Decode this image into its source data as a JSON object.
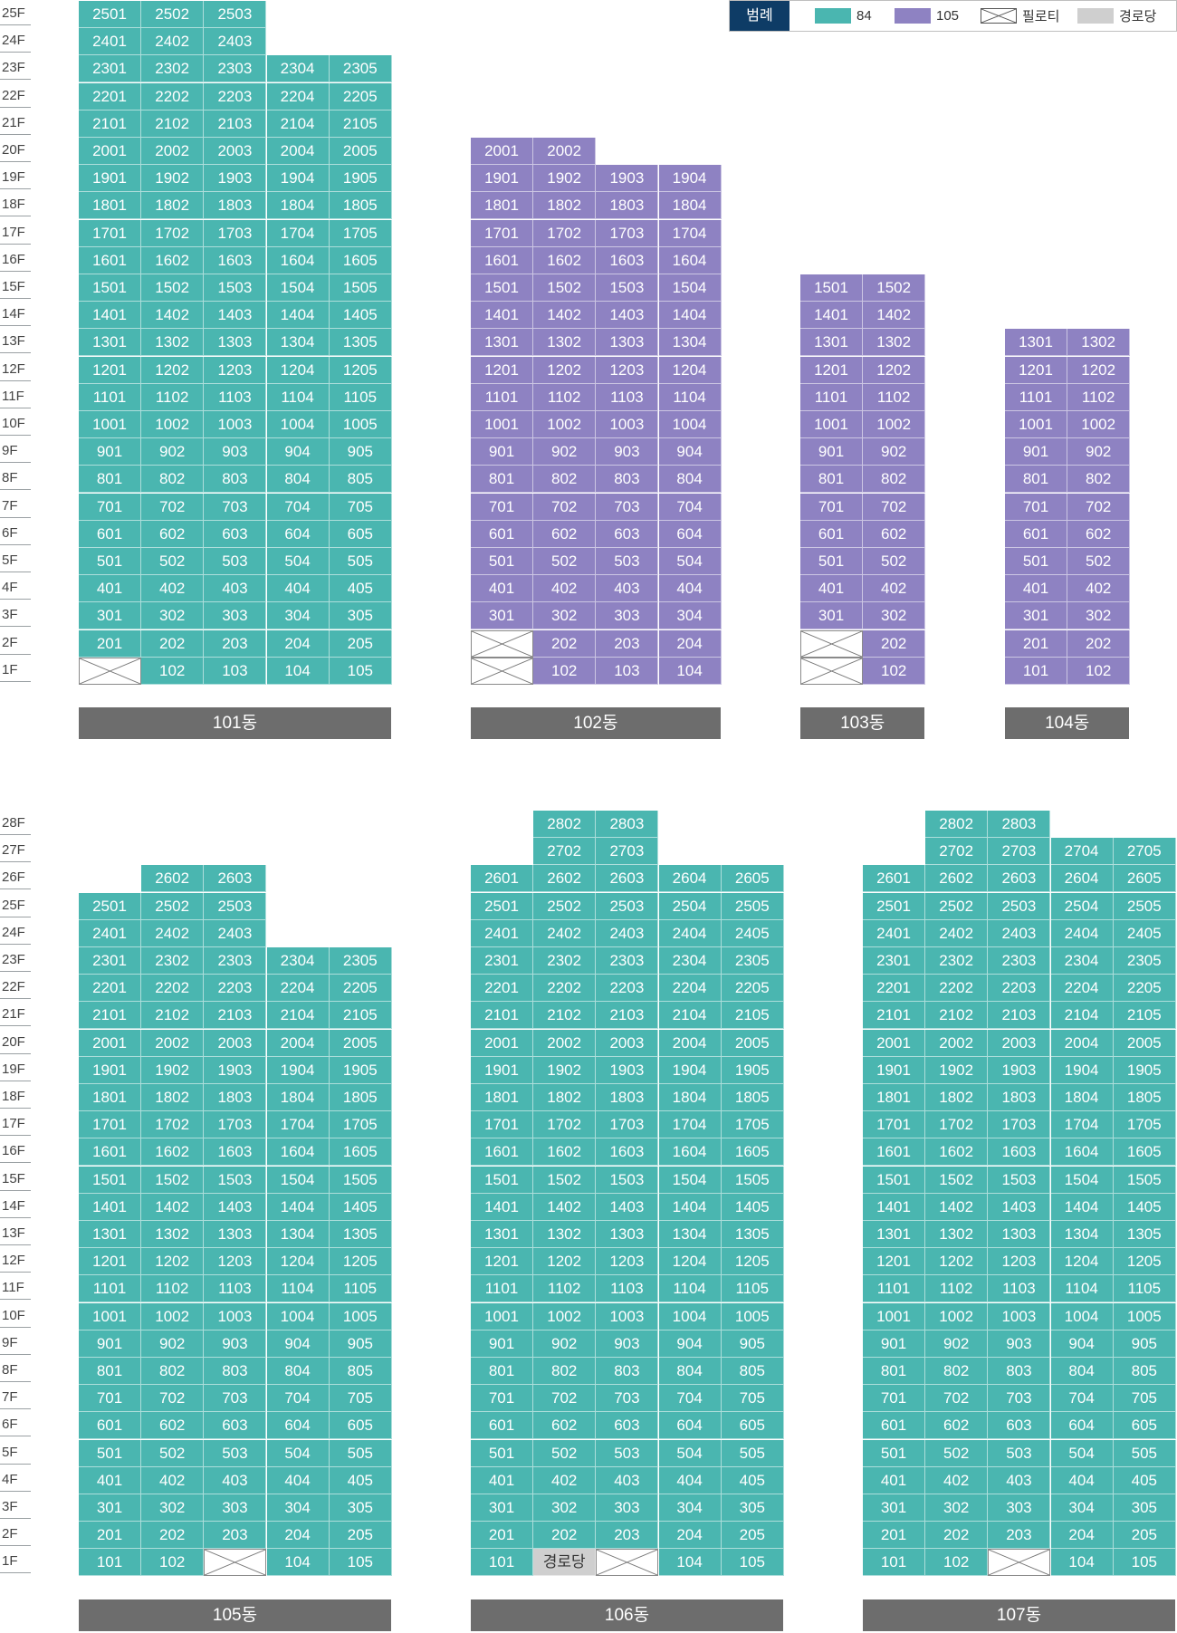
{
  "legend": {
    "title": "범례",
    "items": [
      {
        "type": "84",
        "label": "84",
        "color": "#4ab6b0"
      },
      {
        "type": "105",
        "label": "105",
        "color": "#8e82c2"
      },
      {
        "type": "pil",
        "label": "필로티"
      },
      {
        "type": "hall",
        "label": "경로당",
        "color": "#cfcfcf"
      }
    ]
  },
  "sections": [
    {
      "floors": [
        "25F",
        "24F",
        "23F",
        "22F",
        "21F",
        "20F",
        "19F",
        "18F",
        "17F",
        "16F",
        "15F",
        "14F",
        "13F",
        "12F",
        "11F",
        "10F",
        "9F",
        "8F",
        "7F",
        "6F",
        "5F",
        "4F",
        "3F",
        "2F",
        "1F"
      ],
      "buildings": [
        {
          "name": "101동",
          "columns": [
            {
              "unit": "01",
              "top": 25,
              "type": "84",
              "overrides": {
                "1": "pil"
              }
            },
            {
              "unit": "02",
              "top": 25,
              "type": "84"
            },
            {
              "unit": "03",
              "top": 25,
              "type": "84"
            },
            {
              "unit": "04",
              "top": 23,
              "type": "84"
            },
            {
              "unit": "05",
              "top": 23,
              "type": "84"
            }
          ]
        },
        {
          "name": "102동",
          "columns": [
            {
              "unit": "01",
              "top": 20,
              "type": "105",
              "overrides": {
                "1": "pil",
                "2": "pil"
              }
            },
            {
              "unit": "02",
              "top": 20,
              "type": "105"
            },
            {
              "unit": "03",
              "top": 19,
              "type": "105"
            },
            {
              "unit": "04",
              "top": 19,
              "type": "105"
            }
          ]
        },
        {
          "name": "103동",
          "columns": [
            {
              "unit": "01",
              "top": 15,
              "type": "105",
              "overrides": {
                "1": "pil",
                "2": "pil"
              }
            },
            {
              "unit": "02",
              "top": 15,
              "type": "105"
            }
          ]
        },
        {
          "name": "104동",
          "columns": [
            {
              "unit": "01",
              "top": 13,
              "type": "105"
            },
            {
              "unit": "02",
              "top": 13,
              "type": "105"
            }
          ]
        }
      ]
    },
    {
      "floors": [
        "28F",
        "27F",
        "26F",
        "25F",
        "24F",
        "23F",
        "22F",
        "21F",
        "20F",
        "19F",
        "18F",
        "17F",
        "16F",
        "15F",
        "14F",
        "13F",
        "12F",
        "11F",
        "10F",
        "9F",
        "8F",
        "7F",
        "6F",
        "5F",
        "4F",
        "3F",
        "2F",
        "1F"
      ],
      "buildings": [
        {
          "name": "105동",
          "columns": [
            {
              "unit": "01",
              "top": 25,
              "type": "84"
            },
            {
              "unit": "02",
              "top": 26,
              "type": "84"
            },
            {
              "unit": "03",
              "top": 26,
              "type": "84",
              "overrides": {
                "1": "pil"
              }
            },
            {
              "unit": "04",
              "top": 23,
              "type": "84"
            },
            {
              "unit": "05",
              "top": 23,
              "type": "84"
            }
          ]
        },
        {
          "name": "106동",
          "columns": [
            {
              "unit": "01",
              "top": 26,
              "type": "84"
            },
            {
              "unit": "02",
              "top": 28,
              "type": "84",
              "overrides": {
                "1": "hall"
              }
            },
            {
              "unit": "03",
              "top": 28,
              "type": "84",
              "overrides": {
                "1": "pil"
              }
            },
            {
              "unit": "04",
              "top": 26,
              "type": "84"
            },
            {
              "unit": "05",
              "top": 26,
              "type": "84"
            }
          ]
        },
        {
          "name": "107동",
          "columns": [
            {
              "unit": "01",
              "top": 26,
              "type": "84"
            },
            {
              "unit": "02",
              "top": 28,
              "type": "84"
            },
            {
              "unit": "03",
              "top": 28,
              "type": "84",
              "overrides": {
                "1": "pil"
              }
            },
            {
              "unit": "04",
              "top": 27,
              "type": "84"
            },
            {
              "unit": "05",
              "top": 27,
              "type": "84"
            }
          ]
        }
      ]
    }
  ],
  "hall_label": "경로당"
}
